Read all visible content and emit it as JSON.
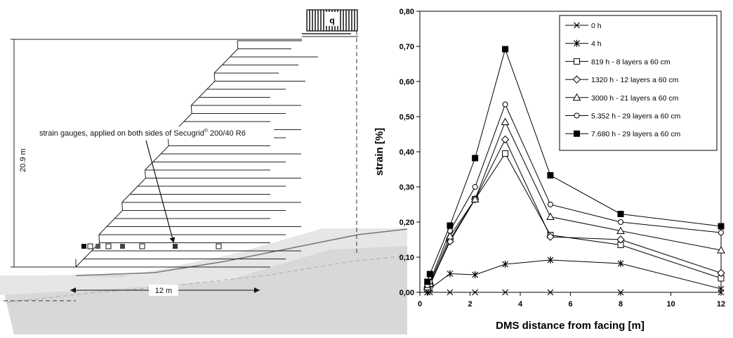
{
  "left_figure": {
    "load_label": "q",
    "height_label": "20.9 m",
    "width_label": "12 m",
    "gauge_label_main": "strain gauges, applied on both sides of Secugrid",
    "gauge_label_sup": "®",
    "gauge_label_tail": " 200/40 R6"
  },
  "chart_data": {
    "type": "line",
    "xlabel": "DMS distance from facing [m]",
    "ylabel": "strain [%]",
    "xlim": [
      0,
      12
    ],
    "ylim": [
      0,
      0.8
    ],
    "xticks": [
      "0",
      "2",
      "4",
      "6",
      "8",
      "10",
      "12"
    ],
    "yticks": [
      "0,00",
      "0,10",
      "0,20",
      "0,30",
      "0,40",
      "0,50",
      "0,60",
      "0,70",
      "0,80"
    ],
    "grid": false,
    "legend_position": "top-right",
    "series": [
      {
        "name": "0 h",
        "marker": "x",
        "x": [
          0.3,
          0.4,
          1.2,
          2.2,
          3.4,
          5.2,
          8.0,
          12.0
        ],
        "y": [
          0.0,
          0.0,
          0.0,
          0.0,
          0.0,
          0.0,
          0.0,
          0.0
        ]
      },
      {
        "name": "4 h",
        "marker": "star",
        "x": [
          0.3,
          0.4,
          1.2,
          2.2,
          3.4,
          5.2,
          8.0,
          12.0
        ],
        "y": [
          0.0,
          0.01,
          0.053,
          0.05,
          0.08,
          0.092,
          0.082,
          0.01
        ]
      },
      {
        "name": "819 h - 8 layers a 60 cm",
        "marker": "square-open",
        "x": [
          0.3,
          0.4,
          1.2,
          2.2,
          3.4,
          5.2,
          8.0,
          12.0
        ],
        "y": [
          0.01,
          0.02,
          0.15,
          0.265,
          0.395,
          0.163,
          0.135,
          0.04
        ]
      },
      {
        "name": "1320 h - 12 layers a 60 cm",
        "marker": "diamond-open",
        "x": [
          0.3,
          0.4,
          1.2,
          2.2,
          3.4,
          5.2,
          8.0,
          12.0
        ],
        "y": [
          0.012,
          0.022,
          0.145,
          0.265,
          0.435,
          0.158,
          0.15,
          0.055
        ]
      },
      {
        "name": "3000 h - 21 layers a 60 cm",
        "marker": "triangle-open",
        "x": [
          0.3,
          0.4,
          1.2,
          2.2,
          3.4,
          5.2,
          8.0,
          12.0
        ],
        "y": [
          0.015,
          0.025,
          0.16,
          0.265,
          0.485,
          0.215,
          0.175,
          0.12
        ]
      },
      {
        "name": "5.352 h - 29 layers a 60 cm",
        "marker": "circle-open",
        "x": [
          0.3,
          0.4,
          1.2,
          2.2,
          3.4,
          5.2,
          8.0,
          12.0
        ],
        "y": [
          0.02,
          0.03,
          0.175,
          0.3,
          0.535,
          0.25,
          0.2,
          0.17
        ]
      },
      {
        "name": "7.680 h - 29 layers a 60 cm",
        "marker": "square-filled",
        "x": [
          0.3,
          0.4,
          1.2,
          2.2,
          3.4,
          5.2,
          8.0,
          12.0
        ],
        "y": [
          0.03,
          0.052,
          0.19,
          0.382,
          0.692,
          0.333,
          0.223,
          0.188
        ]
      }
    ]
  }
}
